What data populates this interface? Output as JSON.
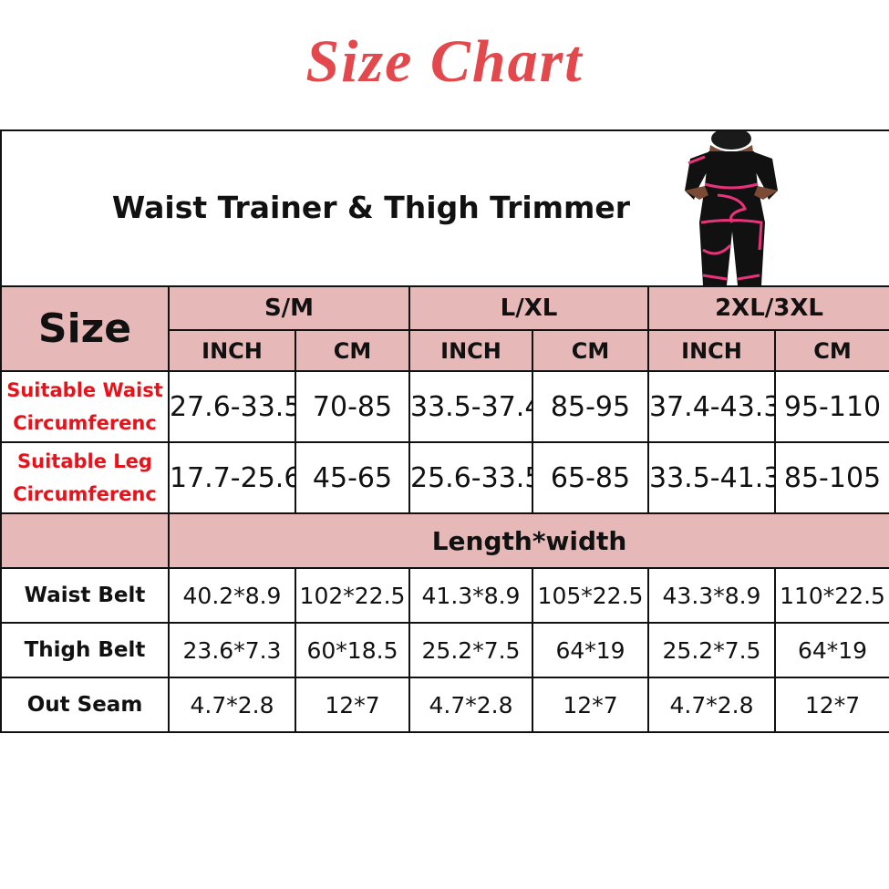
{
  "title": "Size Chart",
  "product": "Waist Trainer & Thigh Trimmer",
  "product_image": "woman-wearing-waist-trainer-thigh-trimmer",
  "colors": {
    "title": "#e2484c",
    "header_bg": "#e6b8b7",
    "label_red": "#e8121a"
  },
  "size_label": "Size",
  "sizes": [
    "S/M",
    "L/XL",
    "2XL/3XL"
  ],
  "units": [
    "INCH",
    "CM",
    "INCH",
    "CM",
    "INCH",
    "CM"
  ],
  "circ_rows": [
    {
      "label_1": "Suitable Waist",
      "label_2": "Circumferenc",
      "values": [
        "27.6-33.5",
        "70-85",
        "33.5-37.4",
        "85-95",
        "37.4-43.3",
        "95-110"
      ]
    },
    {
      "label_1": "Suitable Leg",
      "label_2": "Circumferenc",
      "values": [
        "17.7-25.6",
        "45-65",
        "25.6-33.5",
        "65-85",
        "33.5-41.3",
        "85-105"
      ]
    }
  ],
  "dims_header": "Length*width",
  "dim_rows": [
    {
      "label": "Waist Belt",
      "values": [
        "40.2*8.9",
        "102*22.5",
        "41.3*8.9",
        "105*22.5",
        "43.3*8.9",
        "110*22.5"
      ]
    },
    {
      "label": "Thigh Belt",
      "values": [
        "23.6*7.3",
        "60*18.5",
        "25.2*7.5",
        "64*19",
        "25.2*7.5",
        "64*19"
      ]
    },
    {
      "label": "Out Seam",
      "values": [
        "4.7*2.8",
        "12*7",
        "4.7*2.8",
        "12*7",
        "4.7*2.8",
        "12*7"
      ]
    }
  ]
}
